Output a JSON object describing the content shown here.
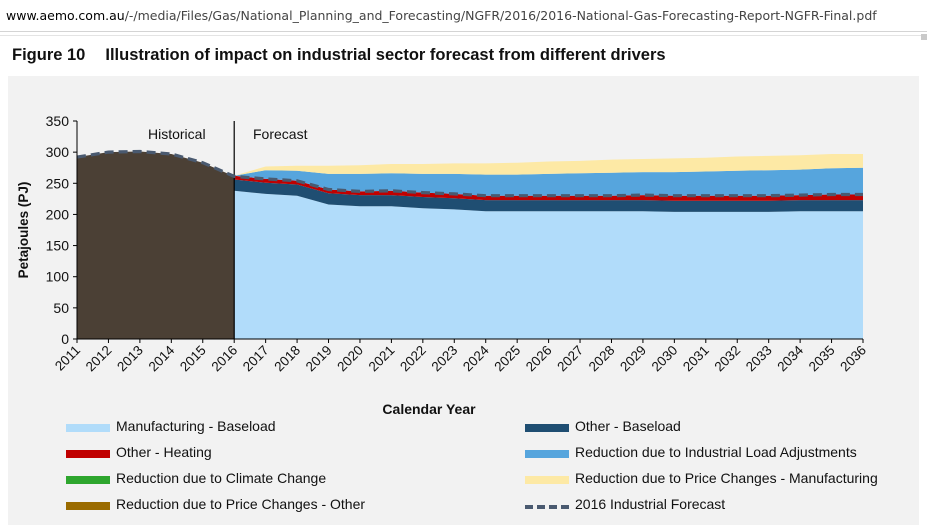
{
  "browser": {
    "url_host": "www.aemo.com.au",
    "url_path": "/-/media/Files/Gas/National_Planning_and_Forecasting/NGFR/2016/2016-National-Gas-Forecasting-Report-NGFR-Final.pdf"
  },
  "figure": {
    "number": "Figure 10",
    "title": "Illustration of impact on industrial sector forecast from different drivers"
  },
  "colors": {
    "panel_bg": "#f2f2f2",
    "historical": "#4b4035",
    "manufacturing_baseload": "#b1dcfa",
    "other_baseload": "#1f4e72",
    "other_heating": "#c00000",
    "industrial_load_adjustments": "#56a5dd",
    "climate_change": "#2ea62e",
    "price_manufacturing": "#fde9a5",
    "price_other": "#9a6b00",
    "forecast_line": "#4a5a70"
  },
  "chart_data": {
    "type": "area",
    "xlabel": "Calendar Year",
    "ylabel": "Petajoules (PJ)",
    "ylim": [
      0,
      350
    ],
    "yticks": [
      0,
      50,
      100,
      150,
      200,
      250,
      300,
      350
    ],
    "x": [
      "2011",
      "2012",
      "2013",
      "2014",
      "2015",
      "2016",
      "2017",
      "2018",
      "2019",
      "2020",
      "2021",
      "2022",
      "2023",
      "2024",
      "2025",
      "2026",
      "2027",
      "2028",
      "2029",
      "2030",
      "2031",
      "2032",
      "2033",
      "2034",
      "2035",
      "2036"
    ],
    "annotations": {
      "historical": "Historical",
      "forecast": "Forecast",
      "divider_year": "2016"
    },
    "historical_series": {
      "years": [
        "2011",
        "2012",
        "2013",
        "2014",
        "2015",
        "2016"
      ],
      "values": [
        292,
        300,
        301,
        297,
        283,
        261
      ]
    },
    "series": [
      {
        "name": "Manufacturing - Baseload",
        "key": "manufacturing_baseload",
        "values": [
          null,
          null,
          null,
          null,
          null,
          238,
          233,
          230,
          216,
          213,
          213,
          210,
          208,
          205,
          205,
          205,
          205,
          205,
          205,
          204,
          204,
          204,
          204,
          205,
          205,
          205
        ]
      },
      {
        "name": "Other - Baseload",
        "key": "other_baseload",
        "values": [
          null,
          null,
          null,
          null,
          null,
          18,
          18,
          18,
          18,
          18,
          18,
          18,
          18,
          18,
          18,
          18,
          18,
          18,
          18,
          18,
          18,
          18,
          18,
          18,
          18,
          18
        ]
      },
      {
        "name": "Other - Heating",
        "key": "other_heating",
        "values": [
          null,
          null,
          null,
          null,
          null,
          6,
          6,
          6,
          6,
          6,
          7,
          7,
          7,
          7,
          7,
          7,
          7,
          7,
          8,
          8,
          8,
          8,
          8,
          8,
          9,
          9
        ]
      },
      {
        "name": "Reduction due to Industrial Load Adjustments",
        "key": "industrial_load_adjustments",
        "values": [
          null,
          null,
          null,
          null,
          null,
          0,
          14,
          16,
          25,
          28,
          28,
          30,
          32,
          34,
          34,
          35,
          36,
          37,
          37,
          38,
          39,
          40,
          41,
          41,
          42,
          43
        ]
      },
      {
        "name": "Reduction due to Climate Change",
        "key": "climate_change",
        "values": [
          null,
          null,
          null,
          null,
          null,
          0,
          0,
          0,
          0,
          0,
          0,
          0,
          0,
          0,
          0,
          0,
          0,
          0,
          0,
          0,
          0,
          0,
          0,
          0,
          0,
          0
        ]
      },
      {
        "name": "Reduction due to Price Changes - Manufacturing",
        "key": "price_manufacturing",
        "values": [
          null,
          null,
          null,
          null,
          null,
          0,
          6,
          8,
          13,
          14,
          15,
          16,
          17,
          18,
          19,
          20,
          20,
          21,
          21,
          22,
          22,
          23,
          23,
          23,
          23,
          22
        ]
      },
      {
        "name": "Reduction due to Price Changes - Other",
        "key": "price_other",
        "values": [
          null,
          null,
          null,
          null,
          null,
          0,
          0,
          0,
          0,
          0,
          0,
          0,
          0,
          0,
          0,
          0,
          0,
          0,
          0,
          0,
          0,
          0,
          0,
          0,
          0,
          0
        ]
      }
    ],
    "forecast_line": {
      "name": "2016 Industrial Forecast",
      "values": [
        292,
        300,
        301,
        297,
        283,
        261,
        257,
        254,
        240,
        237,
        238,
        235,
        233,
        230,
        230,
        230,
        230,
        230,
        231,
        230,
        230,
        230,
        230,
        231,
        232,
        232
      ]
    },
    "legend": [
      {
        "label": "Manufacturing - Baseload",
        "key": "manufacturing_baseload"
      },
      {
        "label": "Other - Baseload",
        "key": "other_baseload"
      },
      {
        "label": "Other - Heating",
        "key": "other_heating"
      },
      {
        "label": "Reduction due to Industrial Load Adjustments",
        "key": "industrial_load_adjustments"
      },
      {
        "label": "Reduction due to Climate Change",
        "key": "climate_change"
      },
      {
        "label": "Reduction due to Price Changes - Manufacturing",
        "key": "price_manufacturing"
      },
      {
        "label": "Reduction due to Price Changes - Other",
        "key": "price_other"
      },
      {
        "label": "2016 Industrial Forecast",
        "key": "forecast_line",
        "style": "dashed"
      }
    ],
    "legend_position": "bottom"
  }
}
